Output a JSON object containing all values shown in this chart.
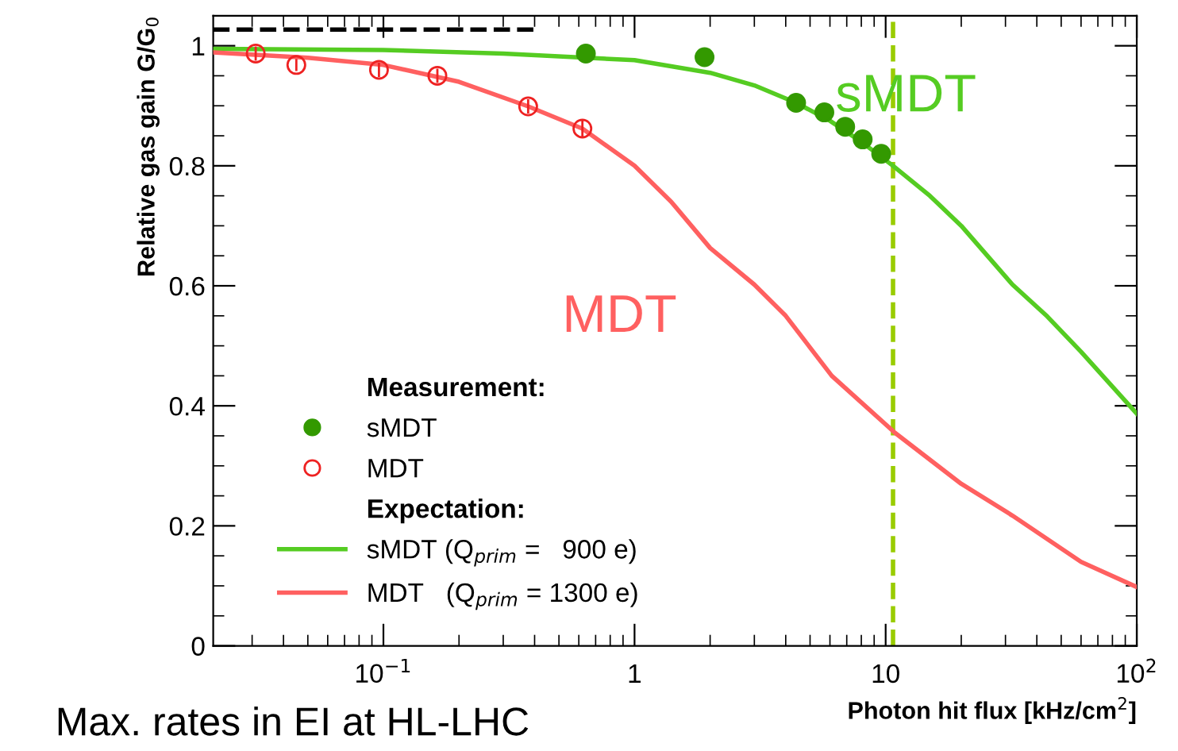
{
  "chart_data": {
    "type": "scatter",
    "xlabel": "Photon hit flux [kHz/cm$^{2}$]",
    "ylabel": "Relative gas gain G/G$_{0}$",
    "log": "x",
    "xlim": [
      0.021,
      100
    ],
    "xticks": [
      {
        "value": 0.1,
        "label": "10$^{−1}$"
      },
      1,
      10,
      {
        "value": 100,
        "label": "10$^{2}$"
      }
    ],
    "ylim": [
      0,
      1.05
    ],
    "yticks": [
      0,
      0.2,
      0.4,
      0.6,
      0.8,
      1
    ],
    "grid": false,
    "legend": "bottom left",
    "series": [
      {
        "name": "sMDT",
        "marker": "circle",
        "color": "#339900",
        "x": [
          0.64,
          1.9,
          4.4,
          5.7,
          6.9,
          8.1,
          9.6
        ],
        "values": [
          0.987,
          0.981,
          0.905,
          0.889,
          0.865,
          0.844,
          0.82
        ],
        "errors": [
          0.008,
          0.008,
          0.01,
          0.01,
          0.01,
          0.01,
          0.015
        ]
      },
      {
        "name": "MDT",
        "marker": "circle",
        "color": "#ee2222",
        "x": [
          0.031,
          0.045,
          0.096,
          0.164,
          0.377,
          0.62
        ],
        "values": [
          0.987,
          0.968,
          0.96,
          0.95,
          0.899,
          0.862
        ],
        "errors": [
          0.012,
          0.01,
          0.012,
          0.012,
          0.012,
          0.015
        ]
      },
      {
        "name": "sMDT (Q$_{prim}$ =   900 e)",
        "type": "line",
        "color": "#55cc22",
        "x": [
          0.021,
          0.1,
          0.3,
          1,
          2,
          3,
          4.4,
          6,
          8,
          10.7,
          15,
          20,
          32,
          44,
          60,
          100
        ],
        "values": [
          0.995,
          0.993,
          0.987,
          0.976,
          0.955,
          0.934,
          0.905,
          0.875,
          0.84,
          0.8,
          0.75,
          0.7,
          0.602,
          0.549,
          0.49,
          0.387
        ]
      },
      {
        "name": "MDT   (Q$_{prim}$ = 1300 e)",
        "type": "line",
        "color": "#ff6060",
        "x": [
          0.021,
          0.05,
          0.1,
          0.2,
          0.377,
          0.62,
          1,
          1.4,
          2,
          3,
          4,
          6.1,
          10.9,
          20,
          32,
          60,
          100
        ],
        "values": [
          0.989,
          0.98,
          0.968,
          0.94,
          0.899,
          0.862,
          0.8,
          0.74,
          0.663,
          0.602,
          0.55,
          0.45,
          0.355,
          0.27,
          0.217,
          0.14,
          0.098
        ]
      },
      {
        "type": "line",
        "color": "#000000",
        "line_style": "dashed",
        "x": [
          0.021,
          0.4
        ],
        "values": [
          1.027,
          1.027
        ]
      }
    ],
    "ref_lines": [
      {
        "axis": "x",
        "value": 10.7,
        "color": "#99cc00",
        "line_style": "dashed"
      }
    ],
    "annotations": [
      "Measurement:",
      "Expectation:",
      "sMDT",
      "MDT",
      "Max. rates in EI at HL-LHC"
    ]
  }
}
